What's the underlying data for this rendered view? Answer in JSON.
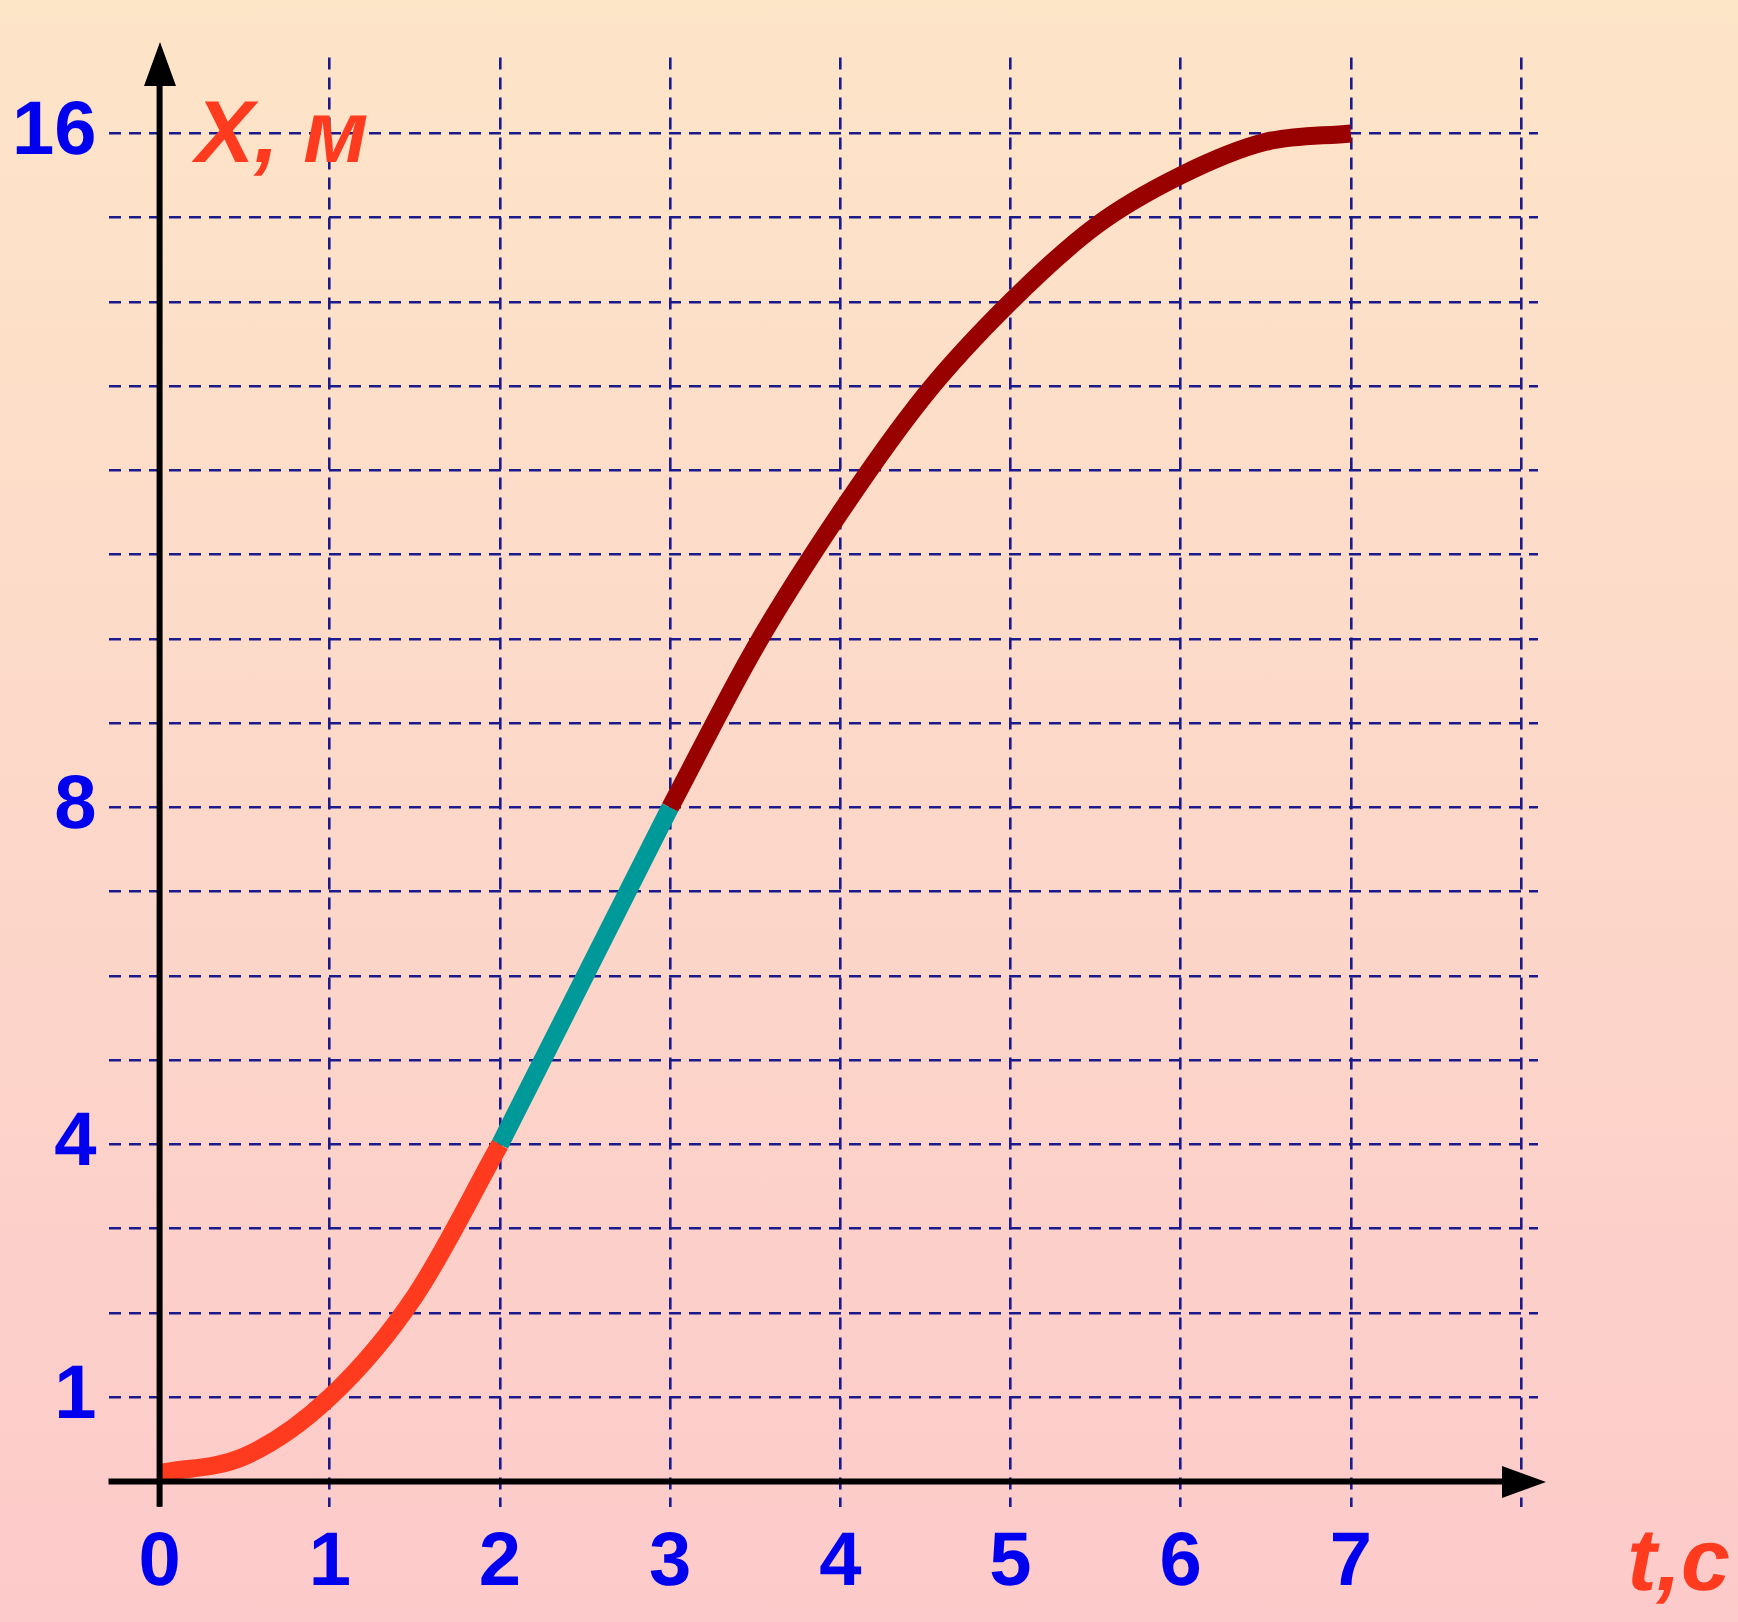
{
  "chart_data": {
    "type": "line",
    "xlabel": "t,с",
    "ylabel": "X, м",
    "xlim": [
      -0.3,
      8.1
    ],
    "ylim": [
      -0.3,
      16.9
    ],
    "xticks": [
      0,
      1,
      2,
      3,
      4,
      5,
      6,
      7,
      {
        "value": 8,
        "label": null
      }
    ],
    "yticks": [
      1,
      {
        "value": 2,
        "label": null
      },
      {
        "value": 3,
        "label": null
      },
      4,
      {
        "value": 5,
        "label": null
      },
      {
        "value": 6,
        "label": null
      },
      {
        "value": 7,
        "label": null
      },
      8,
      {
        "value": 9,
        "label": null
      },
      {
        "value": 10,
        "label": null
      },
      {
        "value": 11,
        "label": null
      },
      {
        "value": 12,
        "label": null
      },
      {
        "value": 13,
        "label": null
      },
      {
        "value": 14,
        "label": null
      },
      {
        "value": 15,
        "label": null
      },
      16
    ],
    "grid": true,
    "legend": false,
    "marker": "none",
    "line_style": "solid",
    "series": [
      {
        "color": "#ff3b1f",
        "x": [
          0,
          0.5,
          1,
          1.5,
          2
        ],
        "values": [
          0.1,
          0.3,
          1,
          2.2,
          4
        ]
      },
      {
        "color": "#009999",
        "x": [
          2,
          2.5,
          3
        ],
        "values": [
          4,
          6,
          8
        ]
      },
      {
        "color": "#990000",
        "x": [
          3,
          3.5,
          4,
          4.5,
          5,
          5.5,
          6,
          6.5,
          7
        ],
        "values": [
          8,
          9.9,
          11.5,
          12.9,
          14,
          14.9,
          15.5,
          15.9,
          16
        ]
      }
    ]
  }
}
